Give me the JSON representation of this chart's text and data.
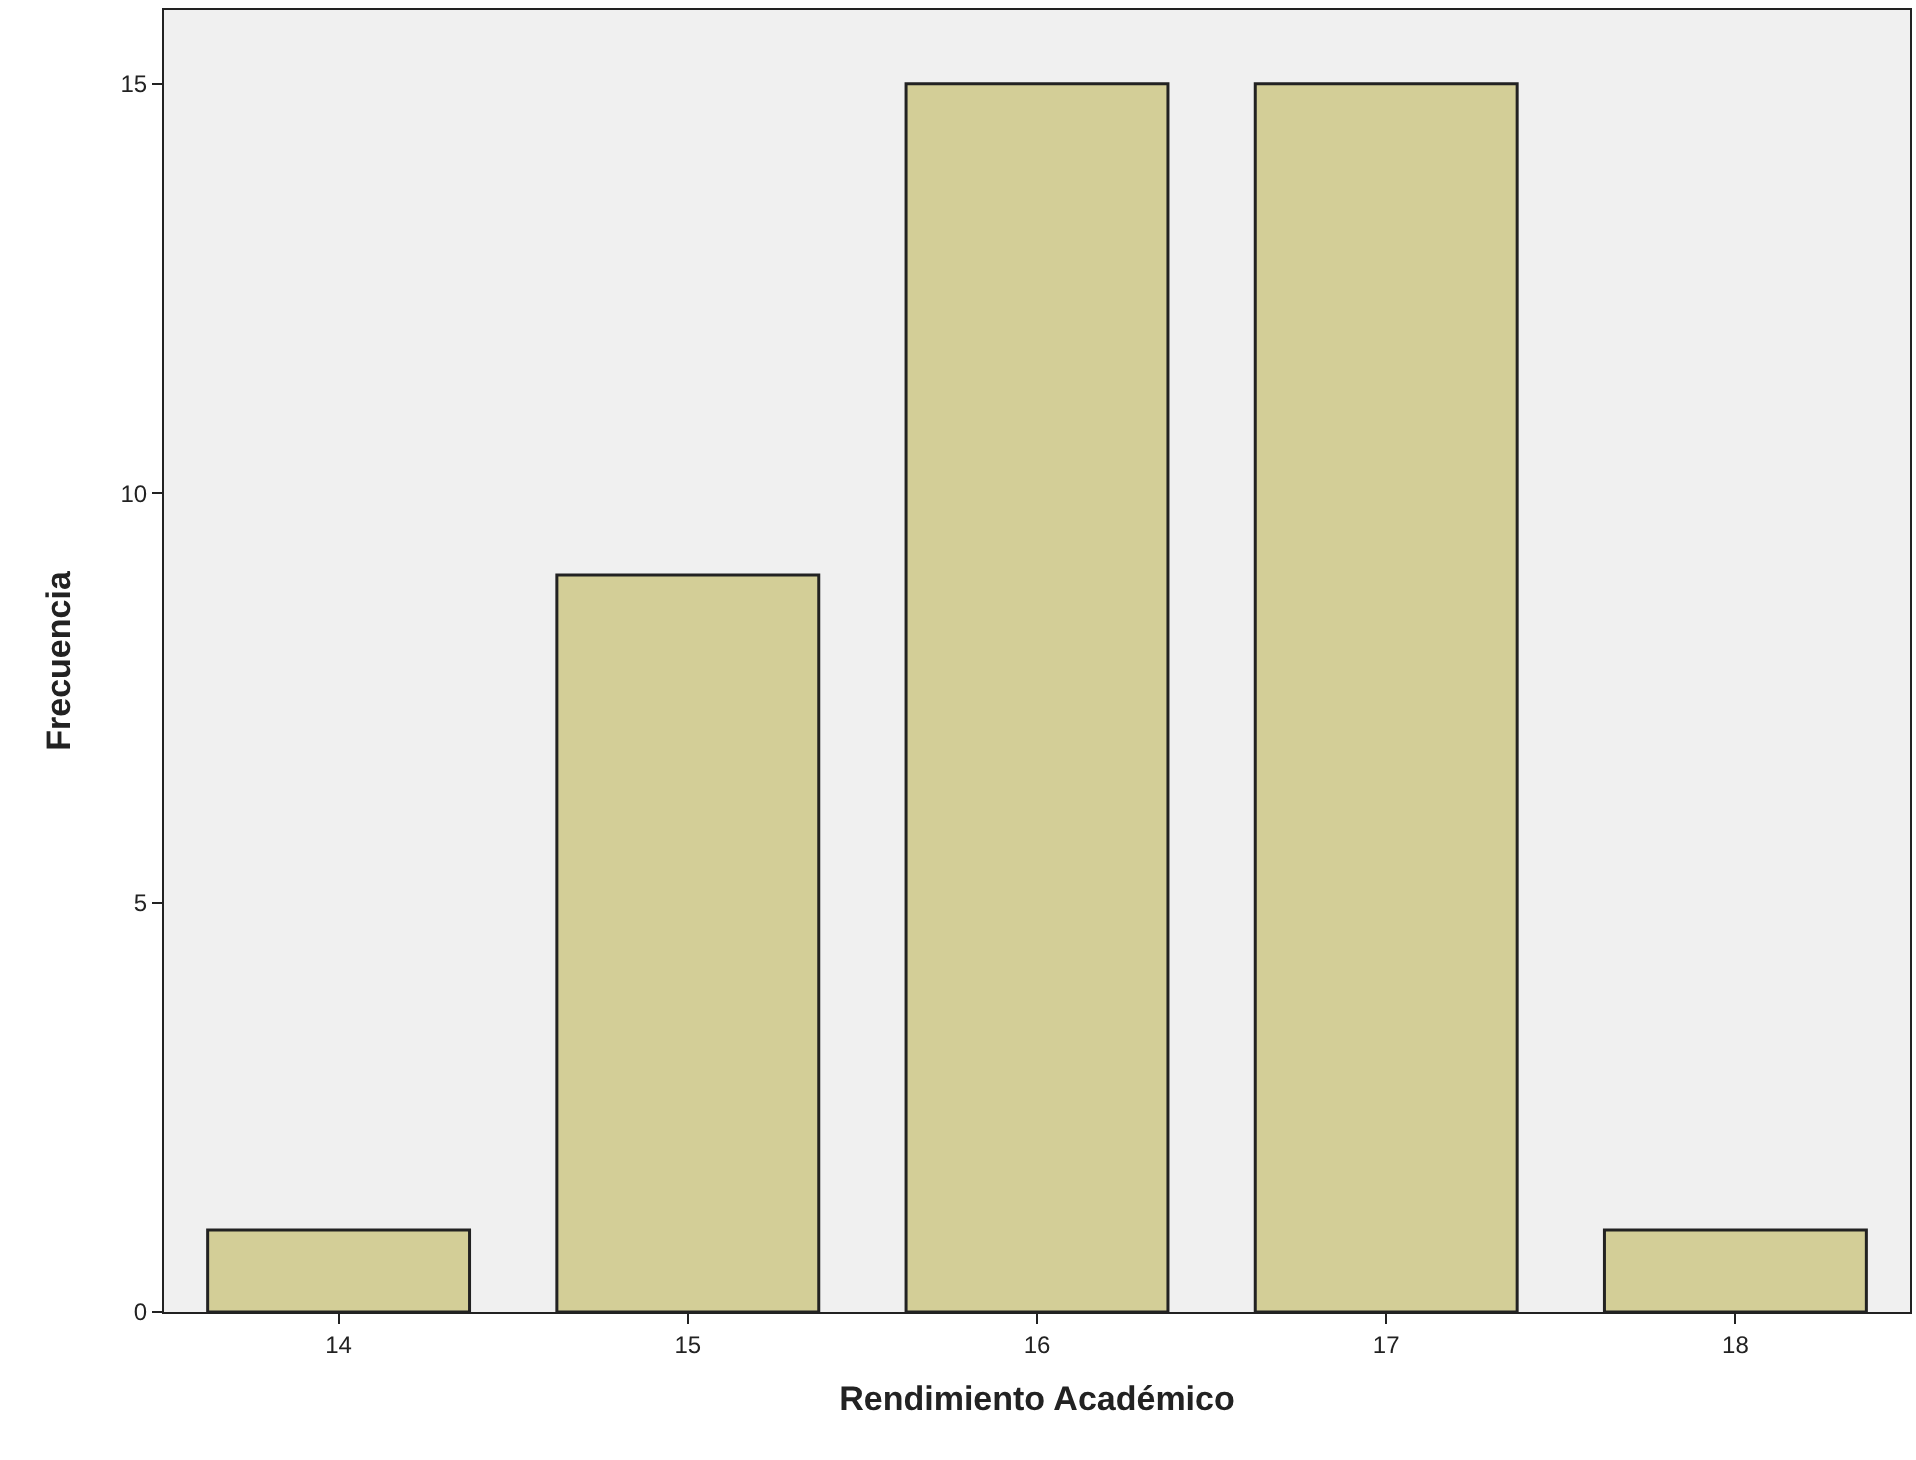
{
  "chart_data": {
    "type": "bar",
    "xlabel": "Rendimiento Académico",
    "ylabel": "Frecuencia",
    "categories": [
      "14",
      "15",
      "16",
      "17",
      "18"
    ],
    "values": [
      1,
      9,
      15,
      15,
      1
    ],
    "color": "#d3ce97",
    "ylim": [
      0,
      15.9
    ],
    "yticks": [
      0,
      5,
      10,
      15
    ],
    "grid": false
  }
}
